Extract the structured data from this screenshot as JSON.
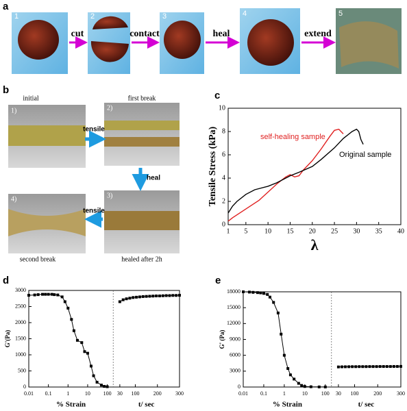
{
  "panel_a": {
    "label": "a",
    "steps": [
      "1",
      "2",
      "3",
      "4",
      "5"
    ],
    "actions": [
      "cut",
      "contact",
      "heal",
      "extend"
    ]
  },
  "panel_b": {
    "label": "b",
    "steps": [
      "1)",
      "2)",
      "3)",
      "4)"
    ],
    "captions": [
      "initial",
      "first break",
      "healed after 2h",
      "second break"
    ],
    "actions": [
      "tensile",
      "heal",
      "tensile"
    ]
  },
  "chart_data": [
    {
      "label": "c",
      "type": "line",
      "ylabel": "Tensile Stress (kPa)",
      "xlabel": "λ",
      "xlim": [
        1,
        40
      ],
      "xticks": [
        1,
        5,
        10,
        15,
        20,
        25,
        30,
        35,
        40
      ],
      "ylim": [
        0,
        10
      ],
      "yticks": [
        0,
        2,
        4,
        6,
        8,
        10
      ],
      "series": [
        {
          "name": "self-healing sample",
          "color": "#e02020",
          "x": [
            1,
            2,
            4,
            6,
            8,
            10,
            12,
            14,
            15,
            16,
            17,
            18,
            20,
            22,
            24,
            25,
            26,
            27
          ],
          "values": [
            0.3,
            0.6,
            1.1,
            1.6,
            2.1,
            2.8,
            3.5,
            4.1,
            4.3,
            4.1,
            4.2,
            4.7,
            5.5,
            6.5,
            7.6,
            8.1,
            8.2,
            7.8
          ]
        },
        {
          "name": "Original sample",
          "color": "#000000",
          "x": [
            1,
            2,
            3,
            5,
            7,
            10,
            12,
            15,
            17,
            20,
            22,
            25,
            27,
            29,
            30,
            30.5,
            31,
            31.5
          ],
          "values": [
            1,
            1.6,
            2,
            2.6,
            3.0,
            3.3,
            3.6,
            4.2,
            4.5,
            5.0,
            5.6,
            6.6,
            7.4,
            8.0,
            8.2,
            8.0,
            7.3,
            6.9
          ]
        }
      ]
    },
    {
      "label": "d",
      "type": "line",
      "ylabel": "G'(Pa)",
      "xlabel": "% Strain",
      "x2label": "t/ sec",
      "xscale": "log",
      "xlim": [
        0.01,
        200
      ],
      "xticks": [
        0.01,
        0.1,
        1,
        10,
        100
      ],
      "x2lim": [
        0,
        300
      ],
      "x2ticks": [
        30,
        100,
        200,
        300
      ],
      "ylim": [
        0,
        3000
      ],
      "yticks": [
        0,
        500,
        1000,
        1500,
        2000,
        2500,
        3000
      ],
      "marker": "square",
      "series": [
        {
          "color": "#000000",
          "x": [
            0.01,
            0.02,
            0.03,
            0.05,
            0.07,
            0.1,
            0.15,
            0.2,
            0.3,
            0.5,
            0.7,
            1,
            1.5,
            2,
            3,
            5,
            7,
            10,
            15,
            20,
            30,
            50,
            70,
            100
          ],
          "values": [
            2850,
            2860,
            2870,
            2880,
            2880,
            2880,
            2880,
            2870,
            2860,
            2800,
            2650,
            2450,
            2100,
            1750,
            1450,
            1380,
            1100,
            1050,
            650,
            350,
            150,
            60,
            20,
            10
          ]
        },
        {
          "color": "#000000",
          "axis": "x2",
          "x": [
            30,
            45,
            60,
            75,
            90,
            105,
            120,
            135,
            150,
            165,
            180,
            195,
            210,
            225,
            240,
            255,
            270,
            285,
            300
          ],
          "values": [
            2650,
            2710,
            2740,
            2760,
            2780,
            2790,
            2800,
            2810,
            2815,
            2820,
            2825,
            2830,
            2830,
            2835,
            2840,
            2840,
            2845,
            2845,
            2850
          ]
        }
      ]
    },
    {
      "label": "e",
      "type": "line",
      "ylabel": "G' (Pa)",
      "xlabel": "% Strain",
      "x2label": "t/ sec",
      "xscale": "log",
      "xlim": [
        0.01,
        200
      ],
      "xticks": [
        0.01,
        0.1,
        1,
        10,
        100
      ],
      "x2lim": [
        0,
        300
      ],
      "x2ticks": [
        30,
        100,
        200,
        300
      ],
      "ylim": [
        0,
        18000
      ],
      "yticks": [
        0,
        3000,
        6000,
        9000,
        12000,
        15000,
        18000
      ],
      "marker": "square",
      "series": [
        {
          "color": "#000000",
          "x": [
            0.01,
            0.02,
            0.03,
            0.05,
            0.07,
            0.1,
            0.15,
            0.2,
            0.3,
            0.5,
            0.7,
            1,
            1.5,
            2,
            3,
            5,
            7,
            10,
            20,
            50,
            100
          ],
          "values": [
            18000,
            17950,
            17900,
            17850,
            17800,
            17700,
            17500,
            17000,
            16000,
            14000,
            10000,
            6000,
            3500,
            2300,
            1500,
            700,
            300,
            100,
            50,
            20,
            10
          ]
        },
        {
          "color": "#000000",
          "axis": "x2",
          "x": [
            30,
            45,
            60,
            75,
            90,
            105,
            120,
            135,
            150,
            165,
            180,
            195,
            210,
            225,
            240,
            255,
            270,
            285,
            300
          ],
          "values": [
            3800,
            3820,
            3830,
            3840,
            3850,
            3850,
            3860,
            3860,
            3860,
            3870,
            3870,
            3870,
            3880,
            3880,
            3880,
            3880,
            3890,
            3890,
            3900
          ]
        }
      ]
    }
  ]
}
